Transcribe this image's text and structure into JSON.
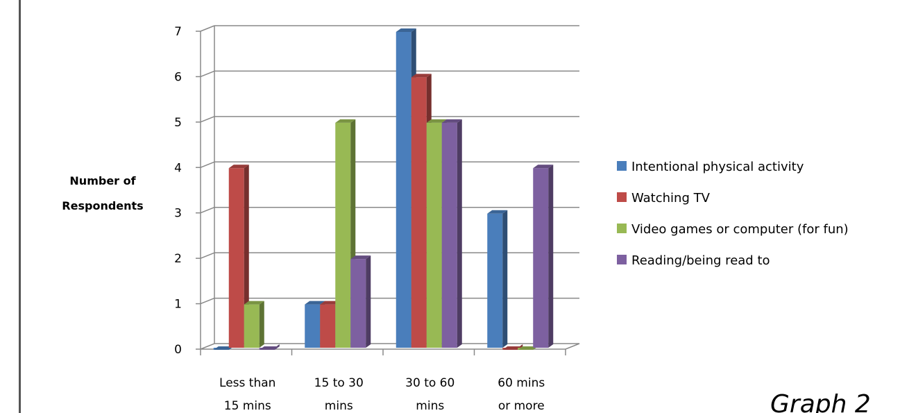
{
  "chart_data": {
    "type": "bar",
    "subtype": "3d-clustered-column",
    "ylabel": "Number of Respondents",
    "xlabel": "",
    "categories": [
      [
        "Less than",
        "15 mins"
      ],
      [
        "15 to 30",
        "mins"
      ],
      [
        "30 to 60",
        "mins"
      ],
      [
        "60 mins",
        "or more"
      ]
    ],
    "series": [
      {
        "name": "Intentional physical activity",
        "color": "#4A7EBB",
        "values": [
          0,
          1,
          7,
          3
        ]
      },
      {
        "name": "Watching TV",
        "color": "#BE4B48",
        "values": [
          4,
          1,
          6,
          0
        ]
      },
      {
        "name": "Video games or computer (for fun)",
        "color": "#98B954",
        "values": [
          1,
          5,
          5,
          0
        ]
      },
      {
        "name": "Reading/being read to",
        "color": "#7D60A0",
        "values": [
          0,
          2,
          5,
          4
        ]
      }
    ],
    "ylim": [
      0,
      7
    ],
    "yticks": [
      0,
      1,
      2,
      3,
      4,
      5,
      6,
      7
    ],
    "grid": true,
    "legend_position": "right"
  },
  "caption": "Graph 2"
}
